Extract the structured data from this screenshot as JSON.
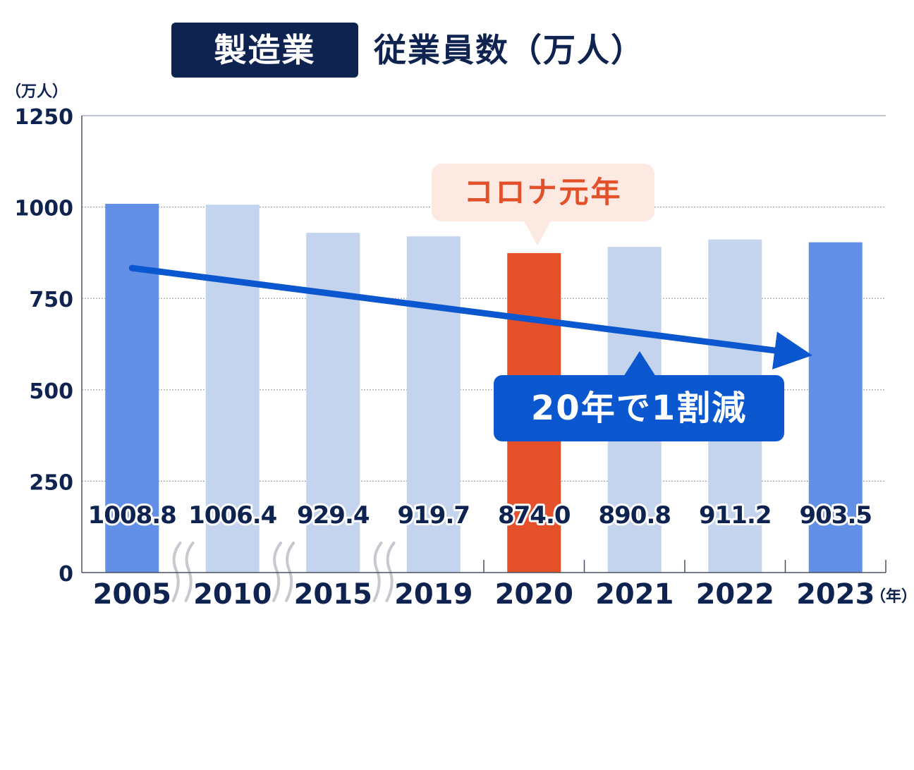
{
  "title": {
    "badge": "製造業",
    "main": "従業員数（万人）"
  },
  "chart_data": {
    "type": "bar",
    "y_unit_label": "（万人）",
    "x_unit_label": "（年）",
    "categories": [
      "2005",
      "2010",
      "2015",
      "2019",
      "2020",
      "2021",
      "2022",
      "2023"
    ],
    "values": [
      1008.8,
      1006.4,
      929.4,
      919.7,
      874.0,
      890.8,
      911.2,
      903.5
    ],
    "value_labels": [
      "1008.8",
      "1006.4",
      "929.4",
      "919.7",
      "874.0",
      "890.8",
      "911.2",
      "903.5"
    ],
    "ylim": [
      0,
      1250
    ],
    "yticks": [
      0,
      250,
      500,
      750,
      1000,
      1250
    ],
    "grid": true,
    "axis_breaks_after": [
      "2005",
      "2010",
      "2015"
    ],
    "colors": {
      "highlight": "#6190e6",
      "normal": "#c4d3ee",
      "corona": "#e4502a",
      "trend": "#0b57d0",
      "text": "#0f2350"
    },
    "bar_color_roles": [
      "highlight",
      "normal",
      "normal",
      "normal",
      "corona",
      "normal",
      "normal",
      "highlight"
    ],
    "annotations": [
      {
        "text": "コロナ元年",
        "target": "2020"
      },
      {
        "text": "20年で1割減",
        "type": "trend-arrow"
      }
    ]
  }
}
